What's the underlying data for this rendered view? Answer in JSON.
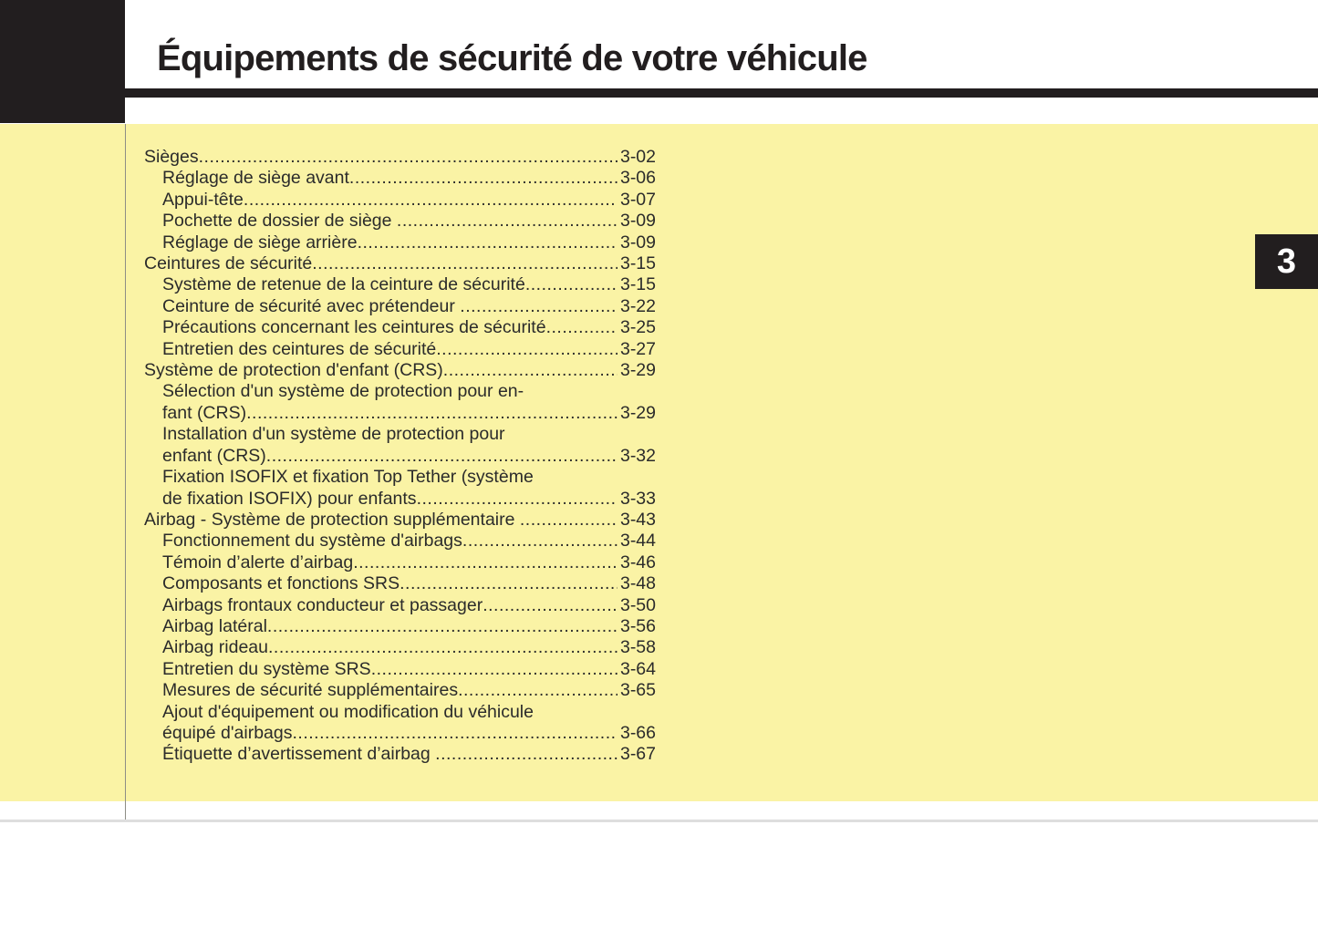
{
  "page": {
    "title": "Équipements de sécurité de votre véhicule",
    "chapter_number": "3"
  },
  "toc": {
    "entries": [
      {
        "indent": 0,
        "lines": [
          "Sièges"
        ],
        "page": "3-02"
      },
      {
        "indent": 1,
        "lines": [
          "Réglage de siège avant"
        ],
        "page": "3-06"
      },
      {
        "indent": 1,
        "lines": [
          "Appui-tête"
        ],
        "page": "3-07"
      },
      {
        "indent": 1,
        "lines": [
          "Pochette de dossier de siège "
        ],
        "page": "3-09"
      },
      {
        "indent": 1,
        "lines": [
          "Réglage de siège arrière"
        ],
        "page": "3-09"
      },
      {
        "indent": 0,
        "lines": [
          "Ceintures de sécurité"
        ],
        "page": "3-15"
      },
      {
        "indent": 1,
        "lines": [
          "Système de retenue de la ceinture de sécurité"
        ],
        "page": "3-15"
      },
      {
        "indent": 1,
        "lines": [
          "Ceinture de sécurité avec prétendeur "
        ],
        "page": "3-22"
      },
      {
        "indent": 1,
        "lines": [
          "Précautions concernant les ceintures de sécurité"
        ],
        "page": "3-25"
      },
      {
        "indent": 1,
        "lines": [
          "Entretien des ceintures de sécurité"
        ],
        "page": "3-27"
      },
      {
        "indent": 0,
        "lines": [
          "Système de protection d'enfant (CRS)"
        ],
        "page": "3-29"
      },
      {
        "indent": 1,
        "lines": [
          "Sélection d'un système de protection pour en-",
          "fant (CRS)"
        ],
        "page": "3-29"
      },
      {
        "indent": 1,
        "lines": [
          "Installation d'un système de protection pour",
          "enfant (CRS)"
        ],
        "page": "3-32"
      },
      {
        "indent": 1,
        "lines": [
          "Fixation ISOFIX et fixation Top Tether (système",
          "de fixation ISOFIX) pour enfants"
        ],
        "page": "3-33"
      },
      {
        "indent": 0,
        "lines": [
          "Airbag - Système de protection supplémentaire "
        ],
        "page": "3-43"
      },
      {
        "indent": 1,
        "lines": [
          "Fonctionnement du système d'airbags"
        ],
        "page": "3-44"
      },
      {
        "indent": 1,
        "lines": [
          "Témoin d’alerte d’airbag"
        ],
        "page": "3-46"
      },
      {
        "indent": 1,
        "lines": [
          "Composants et fonctions SRS"
        ],
        "page": "3-48"
      },
      {
        "indent": 1,
        "lines": [
          "Airbags frontaux conducteur et passager"
        ],
        "page": "3-50"
      },
      {
        "indent": 1,
        "lines": [
          "Airbag latéral"
        ],
        "page": "3-56"
      },
      {
        "indent": 1,
        "lines": [
          "Airbag rideau"
        ],
        "page": "3-58"
      },
      {
        "indent": 1,
        "lines": [
          "Entretien du système SRS"
        ],
        "page": "3-64"
      },
      {
        "indent": 1,
        "lines": [
          "Mesures de sécurité supplémentaires"
        ],
        "page": "3-65"
      },
      {
        "indent": 1,
        "lines": [
          "Ajout d'équipement ou modification du véhicule",
          "équipé d'airbags"
        ],
        "page": "3-66"
      },
      {
        "indent": 1,
        "lines": [
          "Étiquette d’avertissement d’airbag "
        ],
        "page": "3-67"
      }
    ]
  },
  "colors": {
    "ink_black": "#221E1F",
    "panel_yellow": "#FAF3A5",
    "toc_text": "#2B2B2B",
    "column_divider": "#8E8E86",
    "footer_rule": "#DEDEDE",
    "tab_text": "#FFFFFF",
    "paper": "#FFFFFF"
  }
}
